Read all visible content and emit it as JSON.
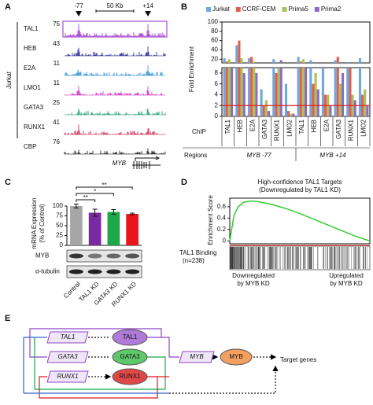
{
  "panel_labels": [
    "A",
    "B",
    "C",
    "D",
    "E"
  ],
  "panel_a": {
    "markers": [
      "-77",
      "+14"
    ],
    "scale_bar": "50 Kb",
    "cell_line": "Jurkat",
    "gene": "MYB",
    "tracks": [
      {
        "name": "TAL1",
        "max": 75,
        "color": "#9b2fc9"
      },
      {
        "name": "HEB",
        "max": 43,
        "color": "#1c1c8a"
      },
      {
        "name": "E2A",
        "max": 11,
        "color": "#2a8fd4"
      },
      {
        "name": "LMO1",
        "max": 11,
        "color": "#cc22bb"
      },
      {
        "name": "GATA3",
        "max": 25,
        "color": "#1b9a73"
      },
      {
        "name": "RUNX1",
        "max": 41,
        "color": "#c81843"
      },
      {
        "name": "CBP",
        "max": 76,
        "color": "#111111"
      }
    ]
  },
  "chart_data": [
    {
      "type": "bar",
      "ylabel": "Fold Enrichment",
      "row_labels": [
        "ChIP",
        "Regions"
      ],
      "groups": [
        "MYB -77",
        "MYB +14"
      ],
      "categories": [
        "TAL1",
        "HEB",
        "E2A",
        "GATA3",
        "RUNX1",
        "LMO2",
        "TAL1",
        "HEB",
        "E2A",
        "GATA3",
        "RUNX1",
        "LMO2"
      ],
      "series": [
        {
          "name": "Jurkat",
          "color": "#6fa8dc",
          "values": [
            22,
            50,
            22,
            5,
            20,
            6,
            25,
            18,
            10,
            18,
            14,
            22
          ]
        },
        {
          "name": "CCRF-CEM",
          "color": "#e0604e",
          "values": [
            15,
            60,
            25,
            2,
            8,
            1,
            15,
            6,
            4,
            25,
            9,
            4
          ]
        },
        {
          "name": "Prima5",
          "color": "#a9c25d",
          "values": [
            20,
            22,
            15,
            3,
            12,
            0.5,
            20,
            8,
            4,
            6,
            4,
            5
          ]
        },
        {
          "name": "Prima2",
          "color": "#8f6bc2",
          "values": [
            12,
            8,
            8,
            1,
            18,
            0.5,
            10,
            5,
            2,
            8,
            3,
            2
          ]
        }
      ],
      "panels": [
        {
          "ylim": [
            0,
            9
          ],
          "yticks": [
            0,
            2,
            4,
            6,
            8
          ]
        },
        {
          "ylim": [
            12,
            100
          ],
          "yticks": [
            20,
            40,
            60,
            80,
            100
          ]
        }
      ],
      "threshold": 2,
      "threshold_color": "#e02020"
    },
    {
      "type": "bar",
      "ylabel": [
        "mRNA Expression",
        "(% of Control)"
      ],
      "categories": [
        "Control",
        "TAL1 KD",
        "GATA3 KD",
        "RUNX1 KD"
      ],
      "values": [
        100,
        83,
        85,
        80
      ],
      "errors": [
        5,
        9,
        6,
        2
      ],
      "colors": [
        "#a6a6a6",
        "#7a2aa0",
        "#1fa84a",
        "#e8151b"
      ],
      "ylim": [
        0,
        100
      ],
      "yticks": [
        0,
        25,
        50,
        75,
        100
      ],
      "comparisons": [
        {
          "categories": [
            "Control",
            "TAL1 KD"
          ],
          "label": "**"
        },
        {
          "categories": [
            "Control",
            "GATA3 KD"
          ],
          "label": "*"
        },
        {
          "categories": [
            "Control",
            "RUNX1 KD"
          ],
          "label": "**"
        }
      ],
      "blots": [
        "MYB",
        "α-tubulin"
      ]
    },
    {
      "type": "line",
      "title": [
        "High-confidence TAL1 Targets",
        "(Downregulated by TAL1 KD)"
      ],
      "ylabel": "Enrichment Score",
      "x": [
        0,
        0.03,
        0.06,
        0.1,
        0.15,
        0.2,
        0.3,
        0.4,
        0.5,
        0.6,
        0.7,
        0.8,
        0.9,
        1
      ],
      "values": [
        0,
        0.45,
        0.6,
        0.68,
        0.7,
        0.69,
        0.64,
        0.57,
        0.48,
        0.38,
        0.28,
        0.18,
        0.08,
        0
      ],
      "color": "#33cc33",
      "xlim": [
        0,
        1
      ],
      "ylim": [
        -0.05,
        0.75
      ],
      "yticks": [
        0,
        0.2,
        0.4,
        0.6
      ],
      "track_label": [
        "TAL1 Binding",
        "(n=238)"
      ],
      "x_labels": [
        [
          "Downregulated",
          "by MYB KD"
        ],
        [
          "Upregulated",
          "by MYB KD"
        ]
      ]
    }
  ],
  "panel_e": {
    "genes": [
      "TAL1",
      "GATA3",
      "RUNX1",
      "MYB"
    ],
    "proteins": [
      "TAL1",
      "GATA3",
      "RUNX1",
      "MYB"
    ],
    "target": "Target genes"
  }
}
